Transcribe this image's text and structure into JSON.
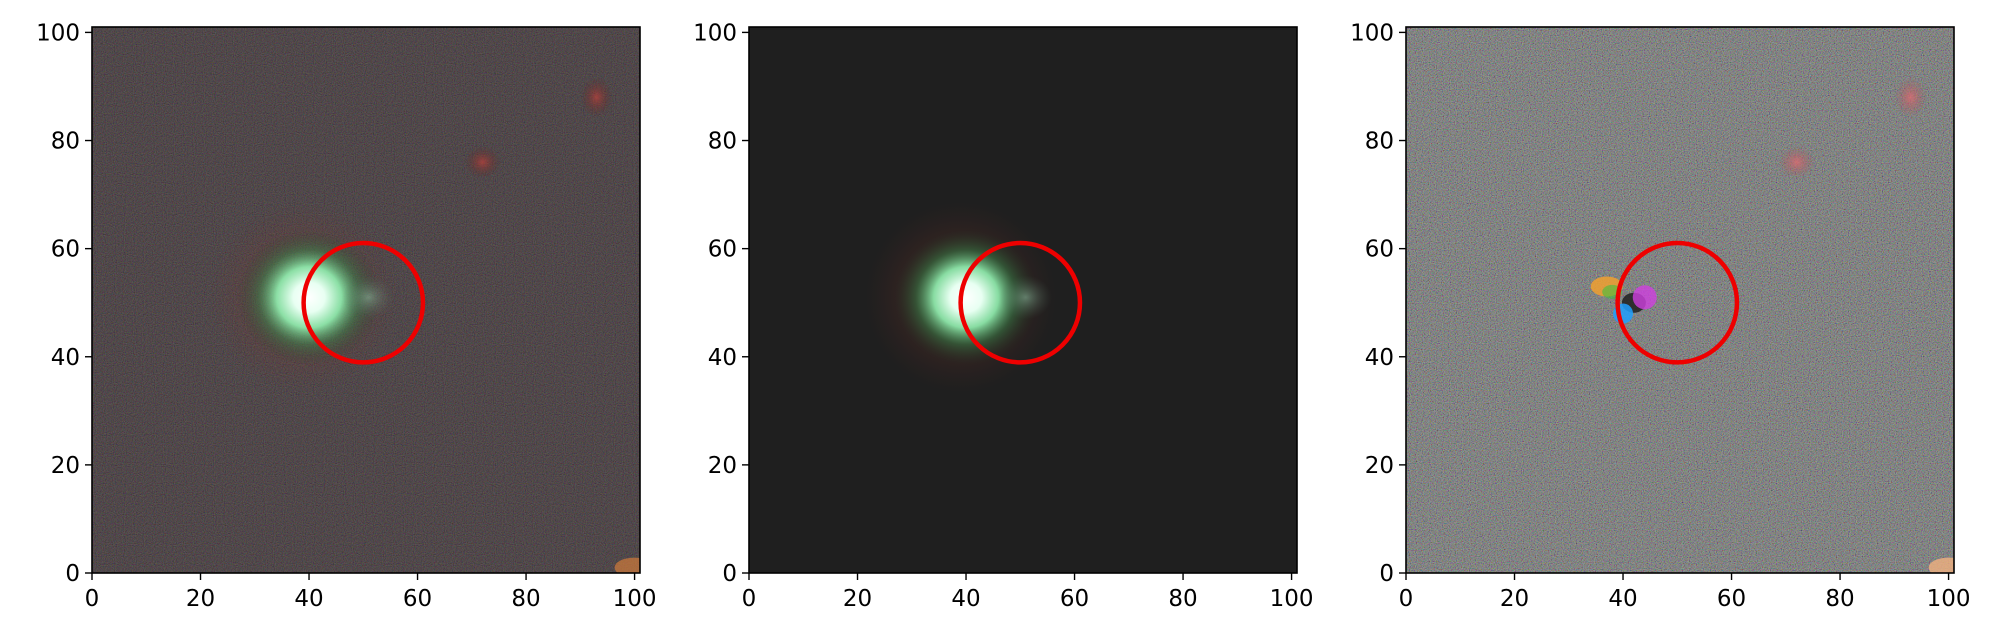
{
  "figure": {
    "panels": [
      {
        "name": "observed-image",
        "kind": "observed",
        "xlim": [
          0,
          101
        ],
        "ylim": [
          0,
          101
        ],
        "xticks": [
          "0",
          "20",
          "40",
          "60",
          "80",
          "100"
        ],
        "yticks": [
          "0",
          "20",
          "40",
          "60",
          "80",
          "100"
        ],
        "background": "#14130f",
        "circle": {
          "center": [
            50,
            50
          ],
          "radius": 11,
          "color": "#ee0000"
        }
      },
      {
        "name": "model-image",
        "kind": "model",
        "xlim": [
          0,
          101
        ],
        "ylim": [
          0,
          101
        ],
        "xticks": [
          "0",
          "20",
          "40",
          "60",
          "80",
          "100"
        ],
        "yticks": [
          "0",
          "20",
          "40",
          "60",
          "80",
          "100"
        ],
        "background": "#1f1f1f",
        "circle": {
          "center": [
            50,
            50
          ],
          "radius": 11,
          "color": "#ee0000"
        }
      },
      {
        "name": "residual-image",
        "kind": "residual",
        "xlim": [
          0,
          101
        ],
        "ylim": [
          0,
          101
        ],
        "xticks": [
          "0",
          "20",
          "40",
          "60",
          "80",
          "100"
        ],
        "yticks": [
          "0",
          "20",
          "40",
          "60",
          "80",
          "100"
        ],
        "background": "#7c7f7e",
        "circle": {
          "center": [
            50,
            50
          ],
          "radius": 11,
          "color": "#ee0000"
        }
      }
    ]
  }
}
